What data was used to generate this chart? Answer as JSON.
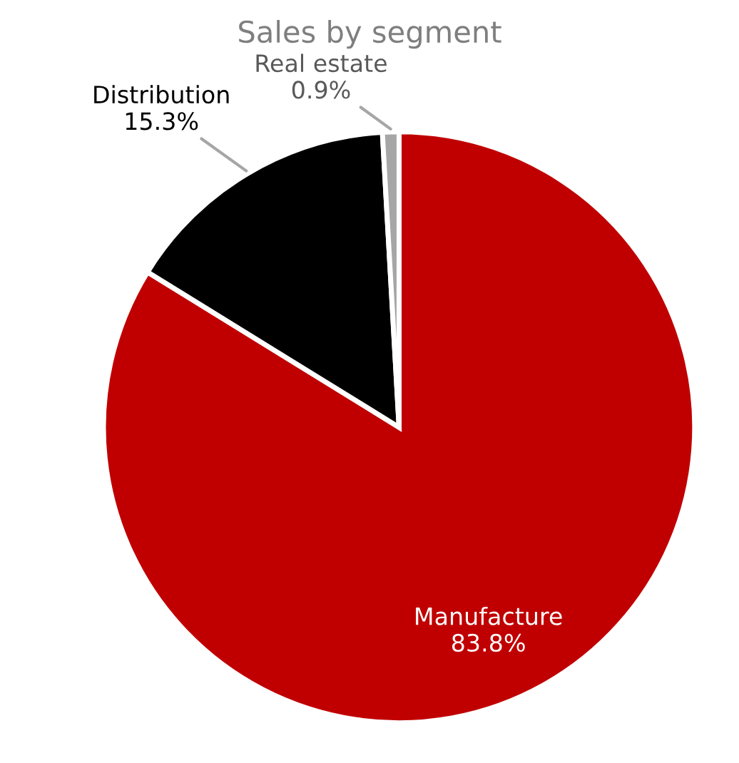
{
  "chart_data": {
    "type": "pie",
    "title": "Sales by segment",
    "categories": [
      "Manufacture",
      "Distribution",
      "Real estate"
    ],
    "values": [
      83.8,
      15.3,
      0.9
    ],
    "colors": [
      "#c00000",
      "#000000",
      "#a6a6a6"
    ],
    "value_labels": [
      "83.8%",
      "15.3%",
      "0.9%"
    ],
    "legend": false
  }
}
